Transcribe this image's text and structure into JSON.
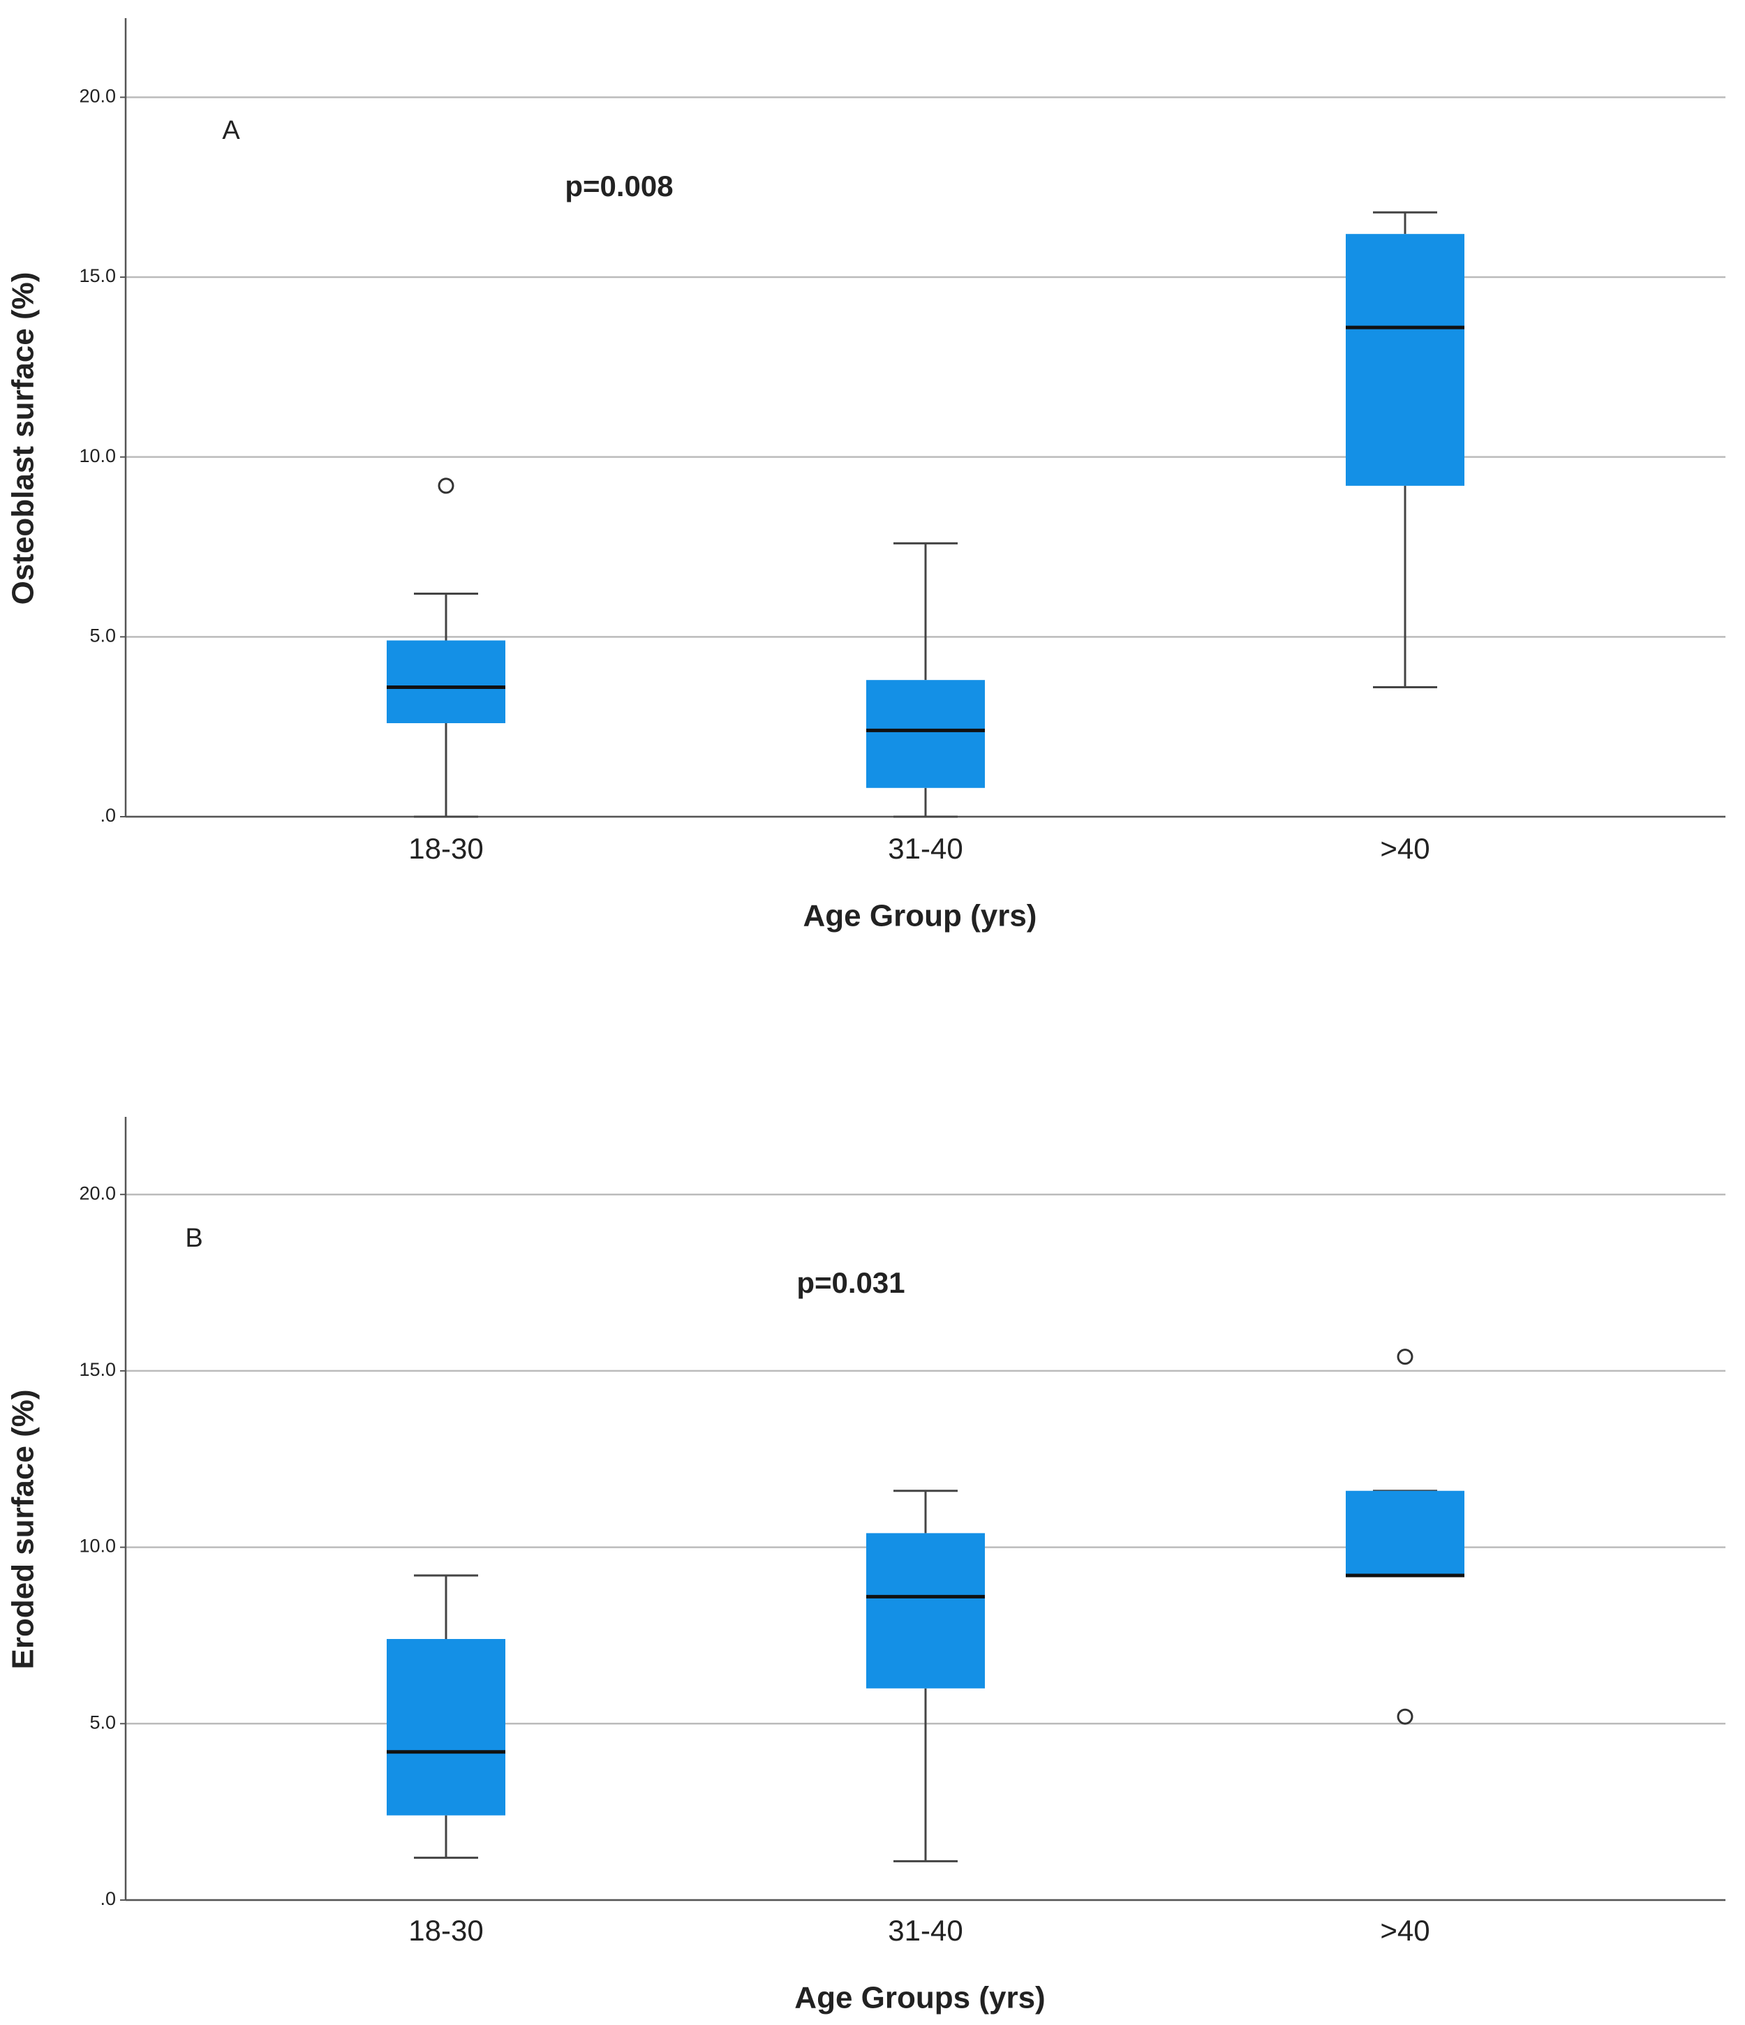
{
  "chart_data": [
    {
      "type": "box",
      "color": "#1490e6",
      "x_label": "Age Group (yrs)",
      "y_label": "Osteoblast surface (%)",
      "annotations": [
        "A",
        "p=0.008"
      ],
      "categories": [
        "18-30",
        "31-40",
        ">40"
      ],
      "boxes": [
        {
          "min": 0,
          "q1": 2.6,
          "median": 3.6,
          "q3": 4.9,
          "max": 6.2,
          "outliers": [
            9.2
          ]
        },
        {
          "min": 0,
          "q1": 0.8,
          "median": 2.4,
          "q3": 3.8,
          "max": 7.6,
          "outliers": []
        },
        {
          "min": 3.6,
          "q1": 9.2,
          "median": 13.6,
          "q3": 16.2,
          "max": 16.8,
          "outliers": []
        }
      ],
      "ylim": [
        0,
        22.2
      ],
      "yticks": [
        {
          "value": 0,
          "label": ".0"
        },
        {
          "value": 5,
          "label": "5.0"
        },
        {
          "value": 10,
          "label": "10.0"
        },
        {
          "value": 15,
          "label": "15.0"
        },
        {
          "value": 20,
          "label": "20.0"
        }
      ],
      "grid": true
    },
    {
      "type": "box",
      "color": "#1490e6",
      "x_label": "Age Groups (yrs)",
      "y_label": "Eroded surface (%)",
      "annotations": [
        "B",
        "p=0.031"
      ],
      "categories": [
        "18-30",
        "31-40",
        ">40"
      ],
      "boxes": [
        {
          "min": 1.2,
          "q1": 2.4,
          "median": 4.2,
          "q3": 7.4,
          "max": 9.2,
          "outliers": []
        },
        {
          "min": 1.1,
          "q1": 6.0,
          "median": 8.6,
          "q3": 10.4,
          "max": 11.6,
          "outliers": []
        },
        {
          "min": 9.2,
          "q1": 9.2,
          "median": 9.2,
          "q3": 11.6,
          "max": 11.6,
          "outliers": [
            15.4,
            5.2
          ]
        }
      ],
      "ylim": [
        0,
        22.2
      ],
      "yticks": [
        {
          "value": 0,
          "label": ".0"
        },
        {
          "value": 5,
          "label": "5.0"
        },
        {
          "value": 10,
          "label": "10.0"
        },
        {
          "value": 15,
          "label": "15.0"
        },
        {
          "value": 20,
          "label": "20.0"
        }
      ],
      "grid": true
    }
  ]
}
